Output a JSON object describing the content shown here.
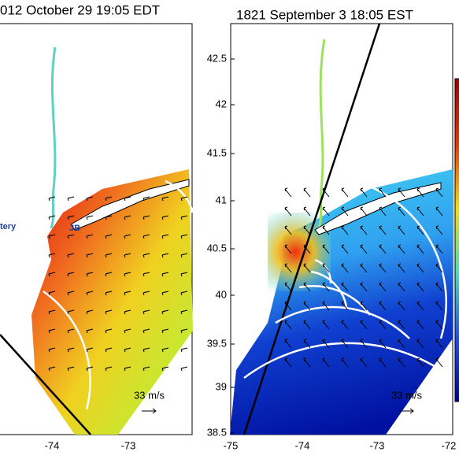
{
  "panels": [
    {
      "title": "012 October 29 19:05 EDT",
      "annotations": [
        "tery",
        "JB"
      ],
      "scale_label": "33 m/s",
      "x_ticks": [
        "-74",
        "-73"
      ]
    },
    {
      "title": "1821 September 3 18:05 EST",
      "scale_label": "33 m/s",
      "x_ticks": [
        "-75",
        "-74",
        "-73",
        "-72"
      ],
      "y_ticks": [
        "42.5",
        "42",
        "41.5",
        "41",
        "40.5",
        "40",
        "39.5",
        "39",
        "38.5"
      ]
    }
  ]
}
